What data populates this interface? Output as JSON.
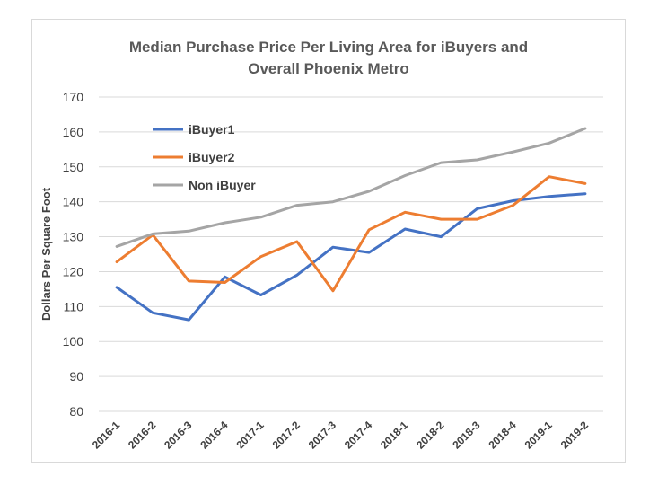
{
  "chart_data": {
    "type": "line",
    "title_lines": [
      "Median Purchase Price Per Living Area for iBuyers and",
      "Overall Phoenix Metro"
    ],
    "xlabel": "",
    "ylabel": "Dollars Per Square Foot",
    "ylim": [
      80,
      170
    ],
    "yticks": [
      "80",
      "90",
      "100",
      "110",
      "120",
      "130",
      "140",
      "150",
      "160",
      "170"
    ],
    "grid": "horizontal",
    "legend_position": "top-left",
    "categories": [
      "2016-1",
      "2016-2",
      "2016-3",
      "2016-4",
      "2017-1",
      "2017-2",
      "2017-3",
      "2017-4",
      "2018-1",
      "2018-2",
      "2018-3",
      "2018-4",
      "2019-1",
      "2019-2"
    ],
    "series": [
      {
        "name": "iBuyer1",
        "color": "#4472c4",
        "values": [
          115.5,
          108.2,
          106.2,
          118.5,
          113.3,
          119,
          127,
          125.5,
          132.2,
          130,
          138,
          140.3,
          141.5,
          142.3
        ]
      },
      {
        "name": "iBuyer2",
        "color": "#ed7d31",
        "values": [
          122.8,
          130.5,
          117.3,
          116.9,
          124.3,
          128.6,
          114.5,
          132,
          137,
          135,
          135,
          139,
          147.2,
          145.2
        ]
      },
      {
        "name": "Non iBuyer",
        "color": "#a5a5a5",
        "values": [
          127.2,
          130.8,
          131.6,
          134,
          135.6,
          139,
          140,
          143,
          147.5,
          151.2,
          152,
          154.3,
          156.8,
          161
        ]
      }
    ]
  }
}
